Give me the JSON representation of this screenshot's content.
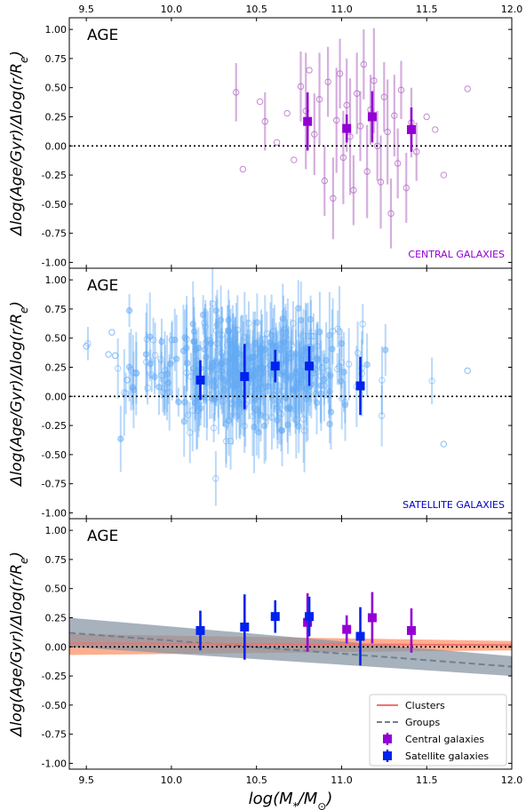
{
  "figure": {
    "xlabel": "log(M_*/M_⊙)",
    "ylabel": "Δlog(Age/Gyr)/Δlog(r/R_e)",
    "top_axis_ticks": [
      "9.5",
      "10.0",
      "10.5",
      "11.0",
      "11.5",
      "12.0"
    ]
  },
  "chart_data": [
    {
      "type": "scatter",
      "panel_label": "AGE",
      "annotation": "CENTRAL GALAXIES",
      "annotation_color": "#9400d3",
      "xlim": [
        9.4,
        12.0
      ],
      "ylim": [
        -1.05,
        1.1
      ],
      "x_ticks": [
        "9.5",
        "10.0",
        "10.5",
        "11.0",
        "11.5",
        "12.0"
      ],
      "y_ticks": [
        "-1.00",
        "-0.75",
        "-0.50",
        "-0.25",
        "0.00",
        "0.25",
        "0.50",
        "0.75",
        "1.00"
      ],
      "zero_line": "dotted",
      "individual_color": "#b36bc4",
      "individual_points": [
        {
          "x": 10.38,
          "y": 0.46,
          "err": 0.25
        },
        {
          "x": 10.42,
          "y": -0.2,
          "err": 0.0
        },
        {
          "x": 10.52,
          "y": 0.38,
          "err": 0.0
        },
        {
          "x": 10.55,
          "y": 0.21,
          "err": 0.25
        },
        {
          "x": 10.62,
          "y": 0.03,
          "err": 0.0
        },
        {
          "x": 10.68,
          "y": 0.28,
          "err": 0.0
        },
        {
          "x": 10.72,
          "y": -0.12,
          "err": 0.0
        },
        {
          "x": 10.76,
          "y": 0.51,
          "err": 0.3
        },
        {
          "x": 10.79,
          "y": 0.3,
          "err": 0.5
        },
        {
          "x": 10.81,
          "y": 0.65,
          "err": 0.0
        },
        {
          "x": 10.84,
          "y": 0.1,
          "err": 0.35
        },
        {
          "x": 10.87,
          "y": 0.4,
          "err": 0.4
        },
        {
          "x": 10.9,
          "y": -0.3,
          "err": 0.3
        },
        {
          "x": 10.92,
          "y": 0.55,
          "err": 0.3
        },
        {
          "x": 10.95,
          "y": -0.45,
          "err": 0.35
        },
        {
          "x": 10.97,
          "y": 0.22,
          "err": 0.45
        },
        {
          "x": 10.99,
          "y": 0.62,
          "err": 0.3
        },
        {
          "x": 11.01,
          "y": -0.1,
          "err": 0.4
        },
        {
          "x": 11.03,
          "y": 0.35,
          "err": 0.4
        },
        {
          "x": 11.05,
          "y": 0.08,
          "err": 0.5
        },
        {
          "x": 11.07,
          "y": -0.38,
          "err": 0.3
        },
        {
          "x": 11.09,
          "y": 0.45,
          "err": 0.35
        },
        {
          "x": 11.11,
          "y": 0.17,
          "err": 0.3
        },
        {
          "x": 11.13,
          "y": 0.7,
          "err": 0.3
        },
        {
          "x": 11.15,
          "y": -0.22,
          "err": 0.4
        },
        {
          "x": 11.17,
          "y": 0.31,
          "err": 0.3
        },
        {
          "x": 11.19,
          "y": 0.56,
          "err": 0.45
        },
        {
          "x": 11.21,
          "y": 0.0,
          "err": 0.3
        },
        {
          "x": 11.23,
          "y": -0.31,
          "err": 0.4
        },
        {
          "x": 11.25,
          "y": 0.42,
          "err": 0.3
        },
        {
          "x": 11.27,
          "y": 0.12,
          "err": 0.45
        },
        {
          "x": 11.29,
          "y": -0.58,
          "err": 0.3
        },
        {
          "x": 11.31,
          "y": 0.26,
          "err": 0.35
        },
        {
          "x": 11.33,
          "y": -0.15,
          "err": 0.3
        },
        {
          "x": 11.35,
          "y": 0.48,
          "err": 0.25
        },
        {
          "x": 11.38,
          "y": -0.36,
          "err": 0.3
        },
        {
          "x": 11.41,
          "y": 0.2,
          "err": 0.3
        },
        {
          "x": 11.44,
          "y": -0.05,
          "err": 0.25
        },
        {
          "x": 11.5,
          "y": 0.25,
          "err": 0.0
        },
        {
          "x": 11.55,
          "y": 0.14,
          "err": 0.0
        },
        {
          "x": 11.6,
          "y": -0.25,
          "err": 0.0
        },
        {
          "x": 11.74,
          "y": 0.49,
          "err": 0.0
        }
      ],
      "binned_color": "#9400d3",
      "binned_points": [
        {
          "x": 10.8,
          "y": 0.21,
          "yerr": 0.25
        },
        {
          "x": 11.03,
          "y": 0.15,
          "yerr": 0.12
        },
        {
          "x": 11.18,
          "y": 0.25,
          "yerr": 0.22
        },
        {
          "x": 11.41,
          "y": 0.14,
          "yerr": 0.19
        }
      ]
    },
    {
      "type": "scatter",
      "panel_label": "AGE",
      "annotation": "SATELLITE GALAXIES",
      "annotation_color": "#0000cc",
      "xlim": [
        9.4,
        12.0
      ],
      "ylim": [
        -1.05,
        1.1
      ],
      "x_ticks": [],
      "y_ticks": [
        "-1.00",
        "-0.75",
        "-0.50",
        "-0.25",
        "0.00",
        "0.25",
        "0.50",
        "0.75",
        "1.00"
      ],
      "zero_line": "dotted",
      "individual_color": "#64aaf5",
      "individual_count": 420,
      "individual_points": [
        {
          "x": 9.5,
          "y": 0.43,
          "err": 0.0
        },
        {
          "x": 9.63,
          "y": 0.36,
          "err": 0.0
        },
        {
          "x": 9.65,
          "y": 0.55,
          "err": 0.0
        },
        {
          "x": 9.67,
          "y": 0.35,
          "err": 0.0
        },
        {
          "x": 9.74,
          "y": 0.14,
          "err": 0.0
        },
        {
          "x": 11.74,
          "y": 0.22,
          "err": 0.0
        },
        {
          "x": 11.6,
          "y": -0.41,
          "err": 0.0
        }
      ],
      "binned_color": "#0022ee",
      "binned_points": [
        {
          "x": 10.17,
          "y": 0.14,
          "yerr": 0.17
        },
        {
          "x": 10.43,
          "y": 0.17,
          "yerr": 0.28
        },
        {
          "x": 10.61,
          "y": 0.26,
          "yerr": 0.14
        },
        {
          "x": 10.81,
          "y": 0.26,
          "yerr": 0.17
        },
        {
          "x": 11.11,
          "y": 0.09,
          "yerr": 0.25
        }
      ]
    },
    {
      "type": "line",
      "panel_label": "AGE",
      "xlim": [
        9.4,
        12.0
      ],
      "ylim": [
        -1.05,
        1.1
      ],
      "x_ticks": [
        "9.5",
        "10.0",
        "10.5",
        "11.0",
        "11.5",
        "12.0"
      ],
      "y_ticks": [
        "-1.00",
        "-0.75",
        "-0.50",
        "-0.25",
        "0.00",
        "0.25",
        "0.50",
        "0.75",
        "1.00"
      ],
      "zero_line": "dotted",
      "fits": [
        {
          "name": "Clusters",
          "style": "solid",
          "color": "#f47070",
          "band_color": "#ffa07a",
          "x": [
            9.4,
            12.0
          ],
          "y": [
            0.03,
            0.015
          ],
          "band_lower": [
            -0.07,
            -0.03
          ],
          "band_upper": [
            0.11,
            0.05
          ]
        },
        {
          "name": "Groups",
          "style": "dashed",
          "color": "#708090",
          "band_color": "#8594a3",
          "x": [
            9.4,
            12.0
          ],
          "y": [
            0.12,
            -0.17
          ],
          "band_lower": [
            0.0,
            -0.25
          ],
          "band_upper": [
            0.25,
            -0.08
          ]
        }
      ],
      "binned_series": [
        {
          "name": "Central galaxies",
          "color": "#9400d3",
          "points": [
            {
              "x": 10.8,
              "y": 0.21,
              "yerr": 0.25
            },
            {
              "x": 11.03,
              "y": 0.15,
              "yerr": 0.12
            },
            {
              "x": 11.18,
              "y": 0.25,
              "yerr": 0.22
            },
            {
              "x": 11.41,
              "y": 0.14,
              "yerr": 0.19
            }
          ]
        },
        {
          "name": "Satellite galaxies",
          "color": "#0022ee",
          "points": [
            {
              "x": 10.17,
              "y": 0.14,
              "yerr": 0.17
            },
            {
              "x": 10.43,
              "y": 0.17,
              "yerr": 0.28
            },
            {
              "x": 10.61,
              "y": 0.26,
              "yerr": 0.14
            },
            {
              "x": 10.81,
              "y": 0.26,
              "yerr": 0.17
            },
            {
              "x": 11.11,
              "y": 0.09,
              "yerr": 0.25
            }
          ]
        }
      ],
      "legend": {
        "placement": "bottom-right",
        "entries": [
          "Clusters",
          "Groups",
          "Central galaxies",
          "Satellite galaxies"
        ]
      }
    }
  ]
}
